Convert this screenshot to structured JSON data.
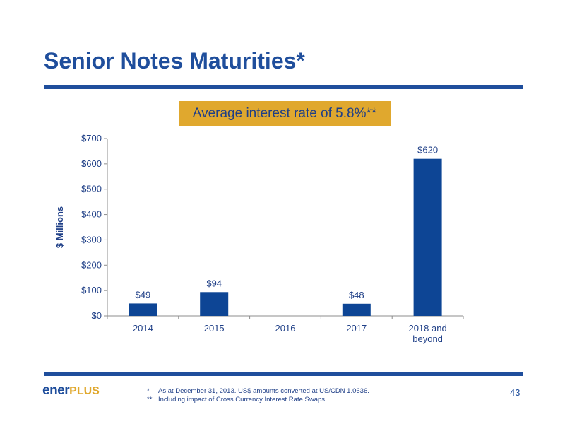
{
  "slide": {
    "title": "Senior Notes Maturities*",
    "callout": "Average interest rate of 5.8%**",
    "page_number": "43",
    "logo": {
      "part1": "ener",
      "part2": "PLUS"
    },
    "footnotes": [
      {
        "mark": "*",
        "text": "As at December 31, 2013.  US$ amounts converted at US/CDN 1.0636."
      },
      {
        "mark": "**",
        "text": "Including impact of Cross Currency Interest Rate Swaps"
      }
    ],
    "colors": {
      "brand_blue": "#1f4e9c",
      "accent_gold": "#e0a82e",
      "bar": "#0d4595"
    }
  },
  "chart_data": {
    "type": "bar",
    "categories": [
      [
        "2014"
      ],
      [
        "2015"
      ],
      [
        "2016"
      ],
      [
        "2017"
      ],
      [
        "2018 and",
        "beyond"
      ]
    ],
    "values": [
      49,
      94,
      null,
      48,
      620
    ],
    "data_labels": [
      "$49",
      "$94",
      "",
      "$48",
      "$620"
    ],
    "ylabel": "$ Millions",
    "ylim": [
      0,
      700
    ],
    "yticks": [
      0,
      100,
      200,
      300,
      400,
      500,
      600,
      700
    ],
    "ytick_labels": [
      "$0",
      "$100",
      "$200",
      "$300",
      "$400",
      "$500",
      "$600",
      "$700"
    ],
    "grid": false,
    "legend": "none"
  }
}
